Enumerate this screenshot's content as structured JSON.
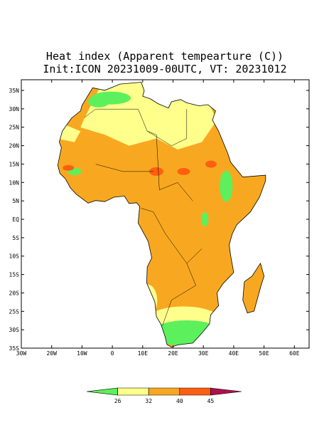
{
  "map": {
    "title": "Heat index (Apparent tempearture (C))",
    "subtitle": "Init:ICON 20231009-00UTC, VT: 20231012",
    "lat_ticks": [
      "35N",
      "30N",
      "25N",
      "20N",
      "15N",
      "10N",
      "5N",
      "EQ",
      "5S",
      "10S",
      "15S",
      "20S",
      "25S",
      "30S",
      "35S"
    ],
    "lon_ticks": [
      "30W",
      "20W",
      "10W",
      "0",
      "10E",
      "20E",
      "30E",
      "40E",
      "50E",
      "60E"
    ],
    "legend": {
      "labels": [
        "26",
        "32",
        "40",
        "45"
      ],
      "colors": [
        "#5cf05c",
        "#ffff8c",
        "#f8a820",
        "#ff6010",
        "#b0104a"
      ]
    }
  }
}
